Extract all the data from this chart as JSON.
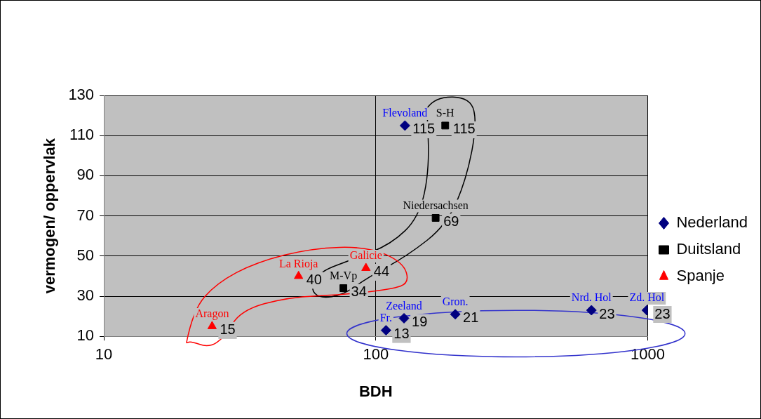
{
  "chart_data": {
    "type": "scatter",
    "xlabel": "BDH",
    "ylabel": "vermogen/ oppervlak",
    "log": "x",
    "xlim": [
      10,
      1000
    ],
    "xticks": [
      10,
      100,
      1000
    ],
    "ylim": [
      10,
      130
    ],
    "yticks": [
      10,
      30,
      50,
      70,
      90,
      110,
      130
    ],
    "grid": true,
    "legend": "right",
    "data_labels": true,
    "series": [
      {
        "name": "Nederland",
        "color": "#000080",
        "marker": "diamond",
        "x": [
          128,
          109,
          127,
          196,
          621,
          993
        ],
        "values": [
          115,
          13,
          19,
          21,
          23,
          23
        ]
      },
      {
        "name": "Duitsland",
        "color": "#000000",
        "marker": "square",
        "x": [
          180,
          166,
          76
        ],
        "values": [
          115,
          69,
          34
        ]
      },
      {
        "name": "Spanje",
        "color": "#ff0000",
        "marker": "triangle",
        "x": [
          25,
          52,
          92
        ],
        "values": [
          15,
          40,
          44
        ]
      }
    ],
    "annotations": [
      {
        "text": "Flevoland",
        "x": 128,
        "y": 115
      },
      {
        "text": "Fr.",
        "x": 109,
        "y": 13
      },
      {
        "text": "Zeeland",
        "x": 127,
        "y": 19
      },
      {
        "text": "Gron.",
        "x": 196,
        "y": 21
      },
      {
        "text": "Nrd. Hol",
        "x": 621,
        "y": 23
      },
      {
        "text": "Zd. Hol",
        "x": 993,
        "y": 23
      },
      {
        "text": "S-H",
        "x": 180,
        "y": 115
      },
      {
        "text": "Niedersachsen",
        "x": 166,
        "y": 69
      },
      {
        "text": "M-Vp",
        "x": 76,
        "y": 34
      },
      {
        "text": "Aragon",
        "x": 25,
        "y": 15
      },
      {
        "text": "La Rioja",
        "x": 52,
        "y": 40
      },
      {
        "text": "Galicie",
        "x": 92,
        "y": 44
      }
    ]
  }
}
